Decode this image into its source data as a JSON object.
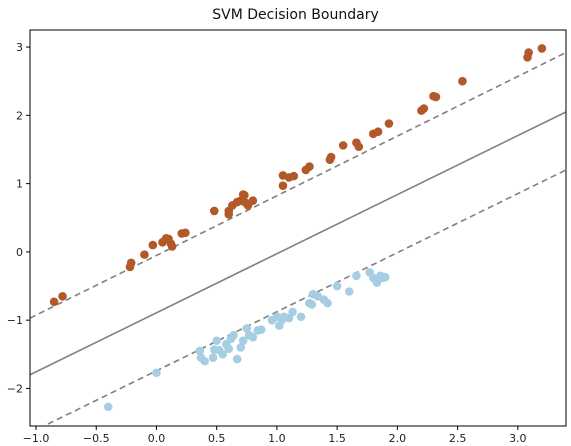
{
  "chart_data": {
    "type": "scatter",
    "title": "SVM Decision Boundary",
    "xlabel": "",
    "ylabel": "",
    "xlim": [
      -1.05,
      3.4
    ],
    "ylim": [
      -2.55,
      3.25
    ],
    "grid": false,
    "x_ticks": [
      -1.0,
      -0.5,
      0.0,
      0.5,
      1.0,
      1.5,
      2.0,
      2.5,
      3.0
    ],
    "y_ticks": [
      -2,
      -1,
      0,
      1,
      2,
      3
    ],
    "x_tick_labels": [
      "−1.0",
      "−0.5",
      "0.0",
      "0.5",
      "1.0",
      "1.5",
      "2.0",
      "2.5",
      "3.0"
    ],
    "y_tick_labels": [
      "−2",
      "−1",
      "0",
      "1",
      "2",
      "3"
    ],
    "colors": {
      "upper_class": "#b15928",
      "lower_class": "#a6cee3",
      "boundary": "#808080",
      "axes": "#000000"
    },
    "boundary_lines": [
      {
        "style": "solid",
        "points": [
          [
            -1.05,
            -1.8
          ],
          [
            3.4,
            2.05
          ]
        ]
      },
      {
        "style": "dashed",
        "points": [
          [
            -1.05,
            -0.97
          ],
          [
            3.4,
            2.92
          ]
        ]
      },
      {
        "style": "dashed",
        "points": [
          [
            -1.05,
            -2.65
          ],
          [
            3.4,
            1.2
          ]
        ]
      }
    ],
    "series": [
      {
        "color": "#b15928",
        "points": [
          [
            -0.85,
            -0.73
          ],
          [
            -0.78,
            -0.65
          ],
          [
            -0.22,
            -0.22
          ],
          [
            -0.21,
            -0.16
          ],
          [
            -0.1,
            -0.04
          ],
          [
            -0.03,
            0.1
          ],
          [
            0.05,
            0.14
          ],
          [
            0.08,
            0.2
          ],
          [
            0.1,
            0.19
          ],
          [
            0.12,
            0.12
          ],
          [
            0.13,
            0.08
          ],
          [
            0.21,
            0.27
          ],
          [
            0.24,
            0.28
          ],
          [
            0.48,
            0.6
          ],
          [
            0.6,
            0.55
          ],
          [
            0.6,
            0.6
          ],
          [
            0.63,
            0.68
          ],
          [
            0.67,
            0.73
          ],
          [
            0.7,
            0.75
          ],
          [
            0.72,
            0.84
          ],
          [
            0.73,
            0.83
          ],
          [
            0.74,
            0.72
          ],
          [
            0.76,
            0.68
          ],
          [
            0.8,
            0.75
          ],
          [
            1.05,
            0.97
          ],
          [
            1.05,
            1.12
          ],
          [
            1.1,
            1.09
          ],
          [
            1.14,
            1.11
          ],
          [
            1.24,
            1.2
          ],
          [
            1.27,
            1.25
          ],
          [
            1.44,
            1.35
          ],
          [
            1.45,
            1.39
          ],
          [
            1.55,
            1.56
          ],
          [
            1.66,
            1.6
          ],
          [
            1.68,
            1.54
          ],
          [
            1.8,
            1.73
          ],
          [
            1.84,
            1.76
          ],
          [
            1.93,
            1.88
          ],
          [
            2.2,
            2.07
          ],
          [
            2.22,
            2.1
          ],
          [
            2.3,
            2.28
          ],
          [
            2.32,
            2.27
          ],
          [
            2.54,
            2.5
          ],
          [
            3.08,
            2.85
          ],
          [
            3.09,
            2.92
          ],
          [
            3.2,
            2.98
          ]
        ]
      },
      {
        "color": "#a6cee3",
        "points": [
          [
            -0.4,
            -2.27
          ],
          [
            0.0,
            -1.77
          ],
          [
            0.36,
            -1.45
          ],
          [
            0.37,
            -1.55
          ],
          [
            0.4,
            -1.6
          ],
          [
            0.47,
            -1.55
          ],
          [
            0.48,
            -1.43
          ],
          [
            0.5,
            -1.3
          ],
          [
            0.52,
            -1.44
          ],
          [
            0.55,
            -1.5
          ],
          [
            0.58,
            -1.35
          ],
          [
            0.6,
            -1.42
          ],
          [
            0.62,
            -1.27
          ],
          [
            0.64,
            -1.22
          ],
          [
            0.67,
            -1.57
          ],
          [
            0.7,
            -1.4
          ],
          [
            0.72,
            -1.3
          ],
          [
            0.75,
            -1.12
          ],
          [
            0.77,
            -1.22
          ],
          [
            0.8,
            -1.25
          ],
          [
            0.84,
            -1.15
          ],
          [
            0.87,
            -1.14
          ],
          [
            0.96,
            -1.0
          ],
          [
            1.0,
            -0.95
          ],
          [
            1.02,
            -1.08
          ],
          [
            1.04,
            -1.0
          ],
          [
            1.06,
            -0.95
          ],
          [
            1.1,
            -0.97
          ],
          [
            1.13,
            -0.88
          ],
          [
            1.2,
            -0.95
          ],
          [
            1.27,
            -0.75
          ],
          [
            1.29,
            -0.77
          ],
          [
            1.3,
            -0.62
          ],
          [
            1.34,
            -0.65
          ],
          [
            1.39,
            -0.7
          ],
          [
            1.42,
            -0.75
          ],
          [
            1.5,
            -0.5
          ],
          [
            1.6,
            -0.58
          ],
          [
            1.66,
            -0.35
          ],
          [
            1.77,
            -0.3
          ],
          [
            1.8,
            -0.38
          ],
          [
            1.83,
            -0.45
          ],
          [
            1.86,
            -0.35
          ],
          [
            1.88,
            -0.38
          ],
          [
            1.9,
            -0.37
          ]
        ]
      }
    ]
  }
}
